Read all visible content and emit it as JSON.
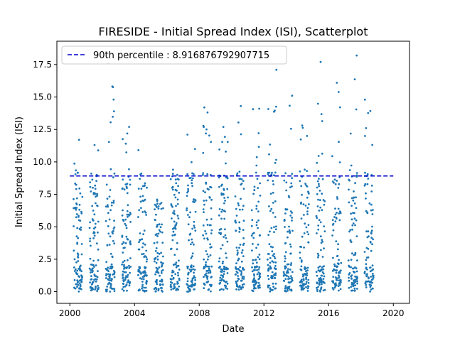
{
  "chart_data": {
    "type": "scatter",
    "title": "FIRESIDE - Initial Spread Index (ISI), Scatterplot",
    "xlabel": "Date",
    "ylabel": "Initial Spread Index (ISI)",
    "xlim": [
      1999.2,
      2021.0
    ],
    "ylim": [
      -0.9,
      19.3
    ],
    "x_ticks": [
      2000,
      2004,
      2008,
      2012,
      2016,
      2020
    ],
    "x_tick_labels": [
      "2000",
      "2004",
      "2008",
      "2012",
      "2016",
      "2020"
    ],
    "y_ticks": [
      0.0,
      2.5,
      5.0,
      7.5,
      10.0,
      12.5,
      15.0,
      17.5
    ],
    "y_tick_labels": [
      "0.0",
      "2.5",
      "5.0",
      "7.5",
      "10.0",
      "12.5",
      "15.0",
      "17.5"
    ],
    "series": [
      {
        "marker_color": "#1f77b4",
        "seasons": [
          {
            "season_x": 2000.5,
            "isi_max": 11.7
          },
          {
            "season_x": 2001.5,
            "isi_max": 11.3
          },
          {
            "season_x": 2002.5,
            "isi_max": 17.6
          },
          {
            "season_x": 2003.5,
            "isi_max": 12.7
          },
          {
            "season_x": 2004.5,
            "isi_max": 10.9
          },
          {
            "season_x": 2005.5,
            "isi_max": 7.1
          },
          {
            "season_x": 2006.5,
            "isi_max": 9.4
          },
          {
            "season_x": 2007.5,
            "isi_max": 12.1
          },
          {
            "season_x": 2008.5,
            "isi_max": 14.2
          },
          {
            "season_x": 2009.5,
            "isi_max": 12.7
          },
          {
            "season_x": 2010.5,
            "isi_max": 14.3
          },
          {
            "season_x": 2011.5,
            "isi_max": 14.1
          },
          {
            "season_x": 2012.5,
            "isi_max": 17.1
          },
          {
            "season_x": 2013.5,
            "isi_max": 15.1
          },
          {
            "season_x": 2014.5,
            "isi_max": 12.8
          },
          {
            "season_x": 2015.5,
            "isi_max": 17.7
          },
          {
            "season_x": 2016.5,
            "isi_max": 16.1
          },
          {
            "season_x": 2017.5,
            "isi_max": 18.2
          },
          {
            "season_x": 2018.5,
            "isi_max": 14.8
          }
        ]
      }
    ],
    "reference_line": {
      "label": "90th percentile : 8.916876792907715",
      "value": 8.916876792907715,
      "color": "#0000cc",
      "style": "dashed",
      "x_range": [
        2000.0,
        2020.0
      ]
    },
    "legend": {
      "placement": "top-left"
    }
  }
}
